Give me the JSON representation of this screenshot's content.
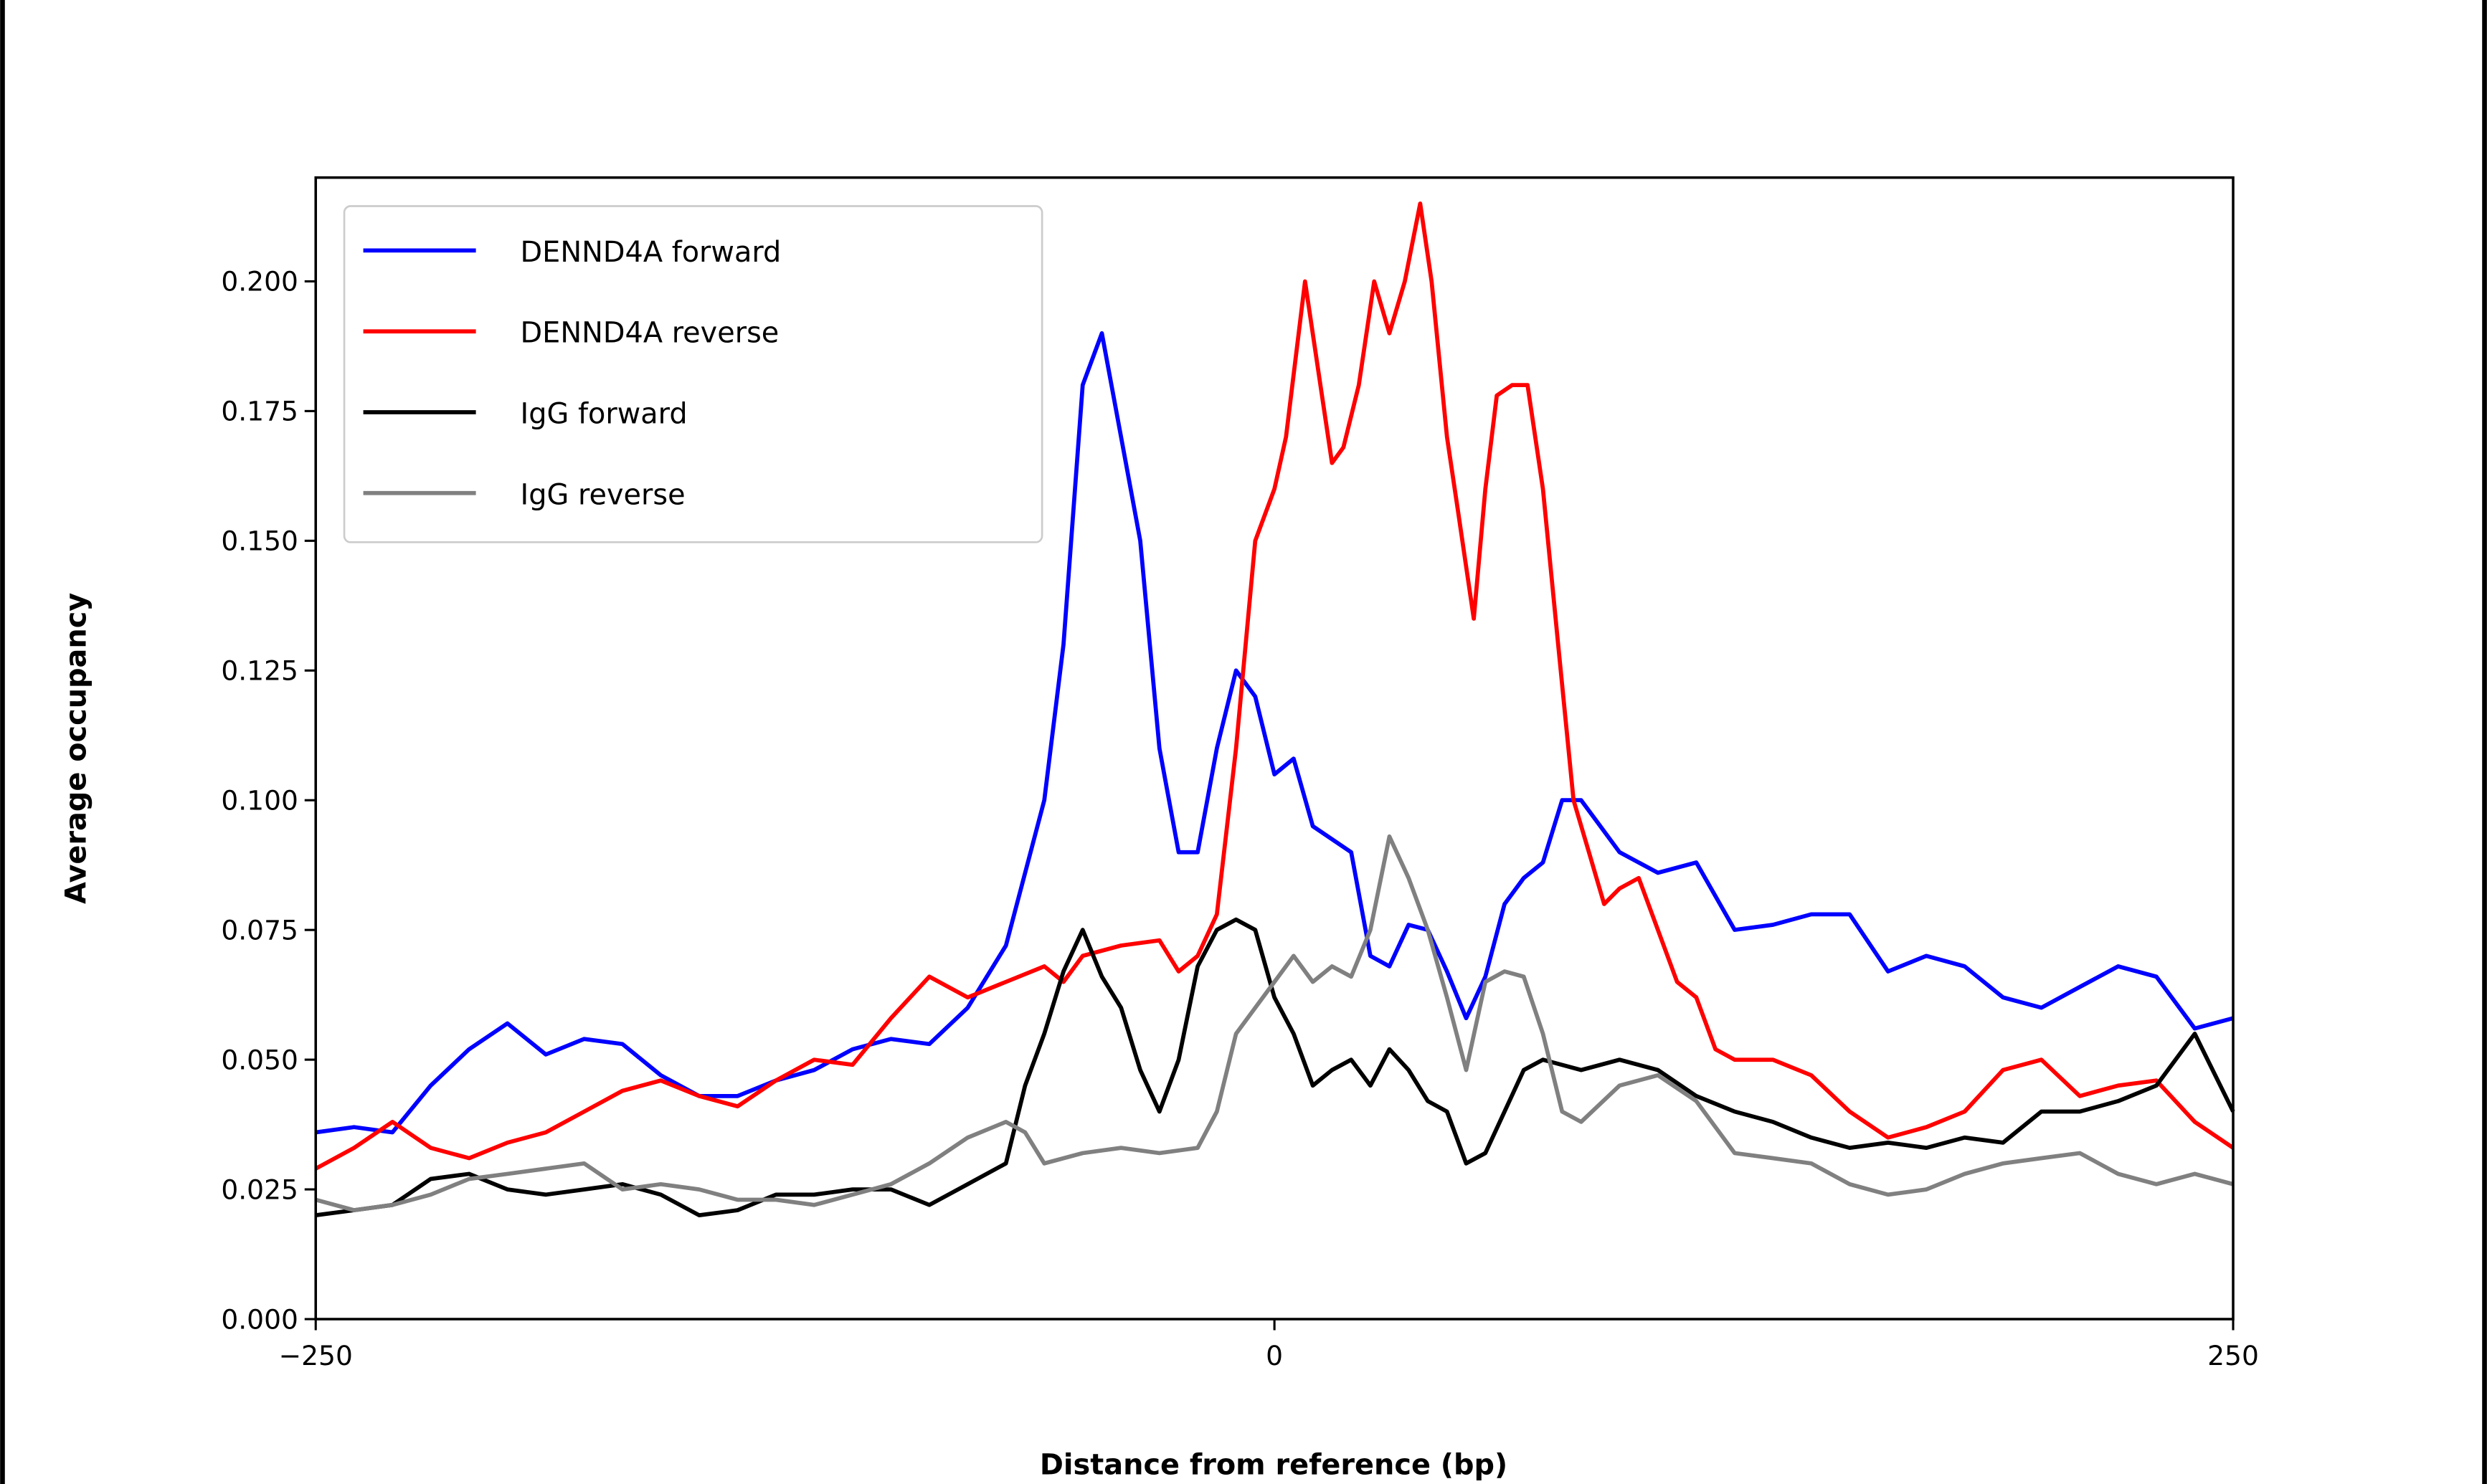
{
  "chart_data": {
    "type": "line",
    "title": "",
    "xlabel": "Distance from reference (bp)",
    "ylabel": "Average occupancy",
    "xlim": [
      -250,
      250
    ],
    "ylim": [
      0,
      0.22
    ],
    "xticks": [
      -250,
      0,
      250
    ],
    "xtick_labels": [
      "−250",
      "0",
      "250"
    ],
    "yticks": [
      0,
      0.025,
      0.05,
      0.075,
      0.1,
      0.125,
      0.15,
      0.175,
      0.2
    ],
    "ytick_labels": [
      "0.000",
      "0.025",
      "0.050",
      "0.075",
      "0.100",
      "0.125",
      "0.150",
      "0.175",
      "0.200"
    ],
    "grid": false,
    "legend_position": "top-left",
    "series": [
      {
        "name": "DENND4A forward",
        "color": "#0000ff",
        "x": [
          -250,
          -240,
          -230,
          -220,
          -210,
          -200,
          -190,
          -180,
          -170,
          -160,
          -150,
          -140,
          -130,
          -120,
          -110,
          -100,
          -90,
          -80,
          -70,
          -60,
          -55,
          -50,
          -45,
          -40,
          -35,
          -30,
          -25,
          -20,
          -15,
          -10,
          -5,
          0,
          5,
          10,
          20,
          25,
          30,
          35,
          40,
          45,
          50,
          55,
          60,
          65,
          70,
          75,
          80,
          90,
          100,
          110,
          120,
          130,
          140,
          150,
          160,
          170,
          180,
          190,
          200,
          210,
          220,
          230,
          240,
          250
        ],
        "y": [
          0.036,
          0.037,
          0.036,
          0.045,
          0.052,
          0.057,
          0.051,
          0.054,
          0.053,
          0.047,
          0.043,
          0.043,
          0.046,
          0.048,
          0.052,
          0.054,
          0.053,
          0.06,
          0.072,
          0.1,
          0.13,
          0.18,
          0.19,
          0.17,
          0.15,
          0.11,
          0.09,
          0.09,
          0.11,
          0.125,
          0.12,
          0.105,
          0.108,
          0.095,
          0.09,
          0.07,
          0.068,
          0.076,
          0.075,
          0.067,
          0.058,
          0.066,
          0.08,
          0.085,
          0.088,
          0.1,
          0.1,
          0.09,
          0.086,
          0.088,
          0.075,
          0.076,
          0.078,
          0.078,
          0.067,
          0.07,
          0.068,
          0.062,
          0.06,
          0.064,
          0.068,
          0.066,
          0.056,
          0.058
        ]
      },
      {
        "name": "DENND4A reverse",
        "color": "#ff0000",
        "x": [
          -250,
          -240,
          -230,
          -220,
          -210,
          -200,
          -190,
          -180,
          -170,
          -160,
          -150,
          -140,
          -130,
          -120,
          -110,
          -100,
          -90,
          -80,
          -70,
          -60,
          -55,
          -50,
          -40,
          -30,
          -25,
          -20,
          -15,
          -10,
          -5,
          0,
          3,
          8,
          12,
          15,
          18,
          22,
          26,
          30,
          34,
          38,
          41,
          45,
          48,
          50,
          52,
          55,
          58,
          62,
          66,
          70,
          74,
          78,
          82,
          86,
          90,
          95,
          100,
          105,
          110,
          115,
          120,
          130,
          140,
          150,
          160,
          170,
          180,
          190,
          200,
          210,
          220,
          230,
          240,
          250
        ],
        "y": [
          0.029,
          0.033,
          0.038,
          0.033,
          0.031,
          0.034,
          0.036,
          0.04,
          0.044,
          0.046,
          0.043,
          0.041,
          0.046,
          0.05,
          0.049,
          0.058,
          0.066,
          0.062,
          0.065,
          0.068,
          0.065,
          0.07,
          0.072,
          0.073,
          0.067,
          0.07,
          0.078,
          0.11,
          0.15,
          0.16,
          0.17,
          0.2,
          0.18,
          0.165,
          0.168,
          0.18,
          0.2,
          0.19,
          0.2,
          0.215,
          0.2,
          0.17,
          0.155,
          0.145,
          0.135,
          0.16,
          0.178,
          0.18,
          0.18,
          0.16,
          0.13,
          0.1,
          0.09,
          0.08,
          0.083,
          0.085,
          0.075,
          0.065,
          0.062,
          0.052,
          0.05,
          0.05,
          0.047,
          0.04,
          0.035,
          0.037,
          0.04,
          0.048,
          0.05,
          0.043,
          0.045,
          0.046,
          0.038,
          0.033
        ]
      },
      {
        "name": "IgG forward",
        "color": "#000000",
        "x": [
          -250,
          -240,
          -230,
          -220,
          -210,
          -200,
          -190,
          -180,
          -170,
          -160,
          -150,
          -140,
          -130,
          -120,
          -110,
          -100,
          -90,
          -80,
          -70,
          -65,
          -60,
          -55,
          -50,
          -45,
          -40,
          -35,
          -30,
          -25,
          -20,
          -15,
          -10,
          -5,
          0,
          5,
          10,
          15,
          20,
          25,
          30,
          35,
          40,
          45,
          50,
          55,
          60,
          65,
          70,
          80,
          90,
          100,
          110,
          120,
          130,
          140,
          150,
          160,
          170,
          180,
          190,
          200,
          210,
          220,
          230,
          240,
          250
        ],
        "y": [
          0.02,
          0.021,
          0.022,
          0.027,
          0.028,
          0.025,
          0.024,
          0.025,
          0.026,
          0.024,
          0.02,
          0.021,
          0.024,
          0.024,
          0.025,
          0.025,
          0.022,
          0.026,
          0.03,
          0.045,
          0.055,
          0.067,
          0.075,
          0.066,
          0.06,
          0.048,
          0.04,
          0.05,
          0.068,
          0.075,
          0.077,
          0.075,
          0.062,
          0.055,
          0.045,
          0.048,
          0.05,
          0.045,
          0.052,
          0.048,
          0.042,
          0.04,
          0.03,
          0.032,
          0.04,
          0.048,
          0.05,
          0.048,
          0.05,
          0.048,
          0.043,
          0.04,
          0.038,
          0.035,
          0.033,
          0.034,
          0.033,
          0.035,
          0.034,
          0.04,
          0.04,
          0.042,
          0.045,
          0.055,
          0.04
        ]
      },
      {
        "name": "IgG reverse",
        "color": "#808080",
        "x": [
          -250,
          -240,
          -230,
          -220,
          -210,
          -200,
          -190,
          -180,
          -170,
          -160,
          -150,
          -140,
          -130,
          -120,
          -110,
          -100,
          -90,
          -80,
          -70,
          -65,
          -60,
          -50,
          -40,
          -30,
          -20,
          -15,
          -10,
          -5,
          0,
          5,
          10,
          15,
          20,
          25,
          30,
          35,
          40,
          45,
          50,
          55,
          60,
          65,
          70,
          75,
          80,
          90,
          100,
          110,
          120,
          130,
          140,
          150,
          160,
          170,
          180,
          190,
          200,
          210,
          220,
          230,
          240,
          250
        ],
        "y": [
          0.023,
          0.021,
          0.022,
          0.024,
          0.027,
          0.028,
          0.029,
          0.03,
          0.025,
          0.026,
          0.025,
          0.023,
          0.023,
          0.022,
          0.024,
          0.026,
          0.03,
          0.035,
          0.038,
          0.036,
          0.03,
          0.032,
          0.033,
          0.032,
          0.033,
          0.04,
          0.055,
          0.06,
          0.065,
          0.07,
          0.065,
          0.068,
          0.066,
          0.075,
          0.093,
          0.085,
          0.075,
          0.062,
          0.048,
          0.065,
          0.067,
          0.066,
          0.055,
          0.04,
          0.038,
          0.045,
          0.047,
          0.042,
          0.032,
          0.031,
          0.03,
          0.026,
          0.024,
          0.025,
          0.028,
          0.03,
          0.031,
          0.032,
          0.028,
          0.026,
          0.028,
          0.026
        ]
      }
    ]
  }
}
